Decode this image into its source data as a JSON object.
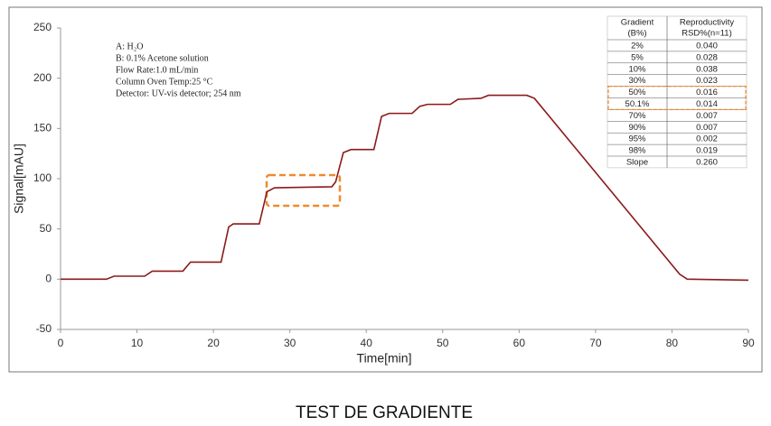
{
  "chart_data": {
    "type": "line",
    "xlabel": "Time[min]",
    "ylabel": "Signal[mAU]",
    "xlim": [
      0,
      90
    ],
    "xticks": [
      0,
      10,
      20,
      30,
      40,
      50,
      60,
      70,
      80,
      90
    ],
    "ylim": [
      -50,
      250
    ],
    "yticks": [
      -50,
      0,
      50,
      100,
      150,
      200,
      250
    ],
    "grid": false,
    "series": [
      {
        "color": "#8b1a1a",
        "x": [
          0,
          6,
          7,
          11,
          12,
          16,
          17,
          21,
          22,
          22.6,
          26,
          27,
          28,
          35.5,
          36,
          37,
          38,
          41,
          42,
          43,
          46,
          47,
          48,
          51,
          52,
          55,
          56,
          61,
          62,
          81,
          82,
          90
        ],
        "values": [
          0,
          0,
          3,
          3,
          8,
          8,
          17,
          17,
          52,
          55,
          55,
          87,
          91,
          92,
          97,
          126,
          129,
          129,
          162,
          165,
          165,
          172,
          174,
          174,
          179,
          180,
          183,
          183,
          180,
          5,
          0,
          -1
        ]
      }
    ],
    "annotations": [
      "A: H₂O",
      "B: 0.1% Acetone solution",
      "Flow Rate:1.0 mL/min",
      "Column Oven Temp:25 °C",
      "Detector: UV-vis detector; 254 nm"
    ],
    "table": {
      "header": [
        [
          "Gradient",
          "(B%)"
        ],
        [
          "Reproductivity",
          "RSD%(n=11)"
        ]
      ],
      "rows": [
        [
          "2%",
          "0.040"
        ],
        [
          "5%",
          "0.028"
        ],
        [
          "10%",
          "0.038"
        ],
        [
          "30%",
          "0.023"
        ],
        [
          "50%",
          "0.016"
        ],
        [
          "50.1%",
          "0.014"
        ],
        [
          "70%",
          "0.007"
        ],
        [
          "90%",
          "0.007"
        ],
        [
          "95%",
          "0.002"
        ],
        [
          "98%",
          "0.019"
        ],
        [
          "Slope",
          "0.260"
        ]
      ]
    }
  },
  "caption": "TEST DE GRADIENTE"
}
